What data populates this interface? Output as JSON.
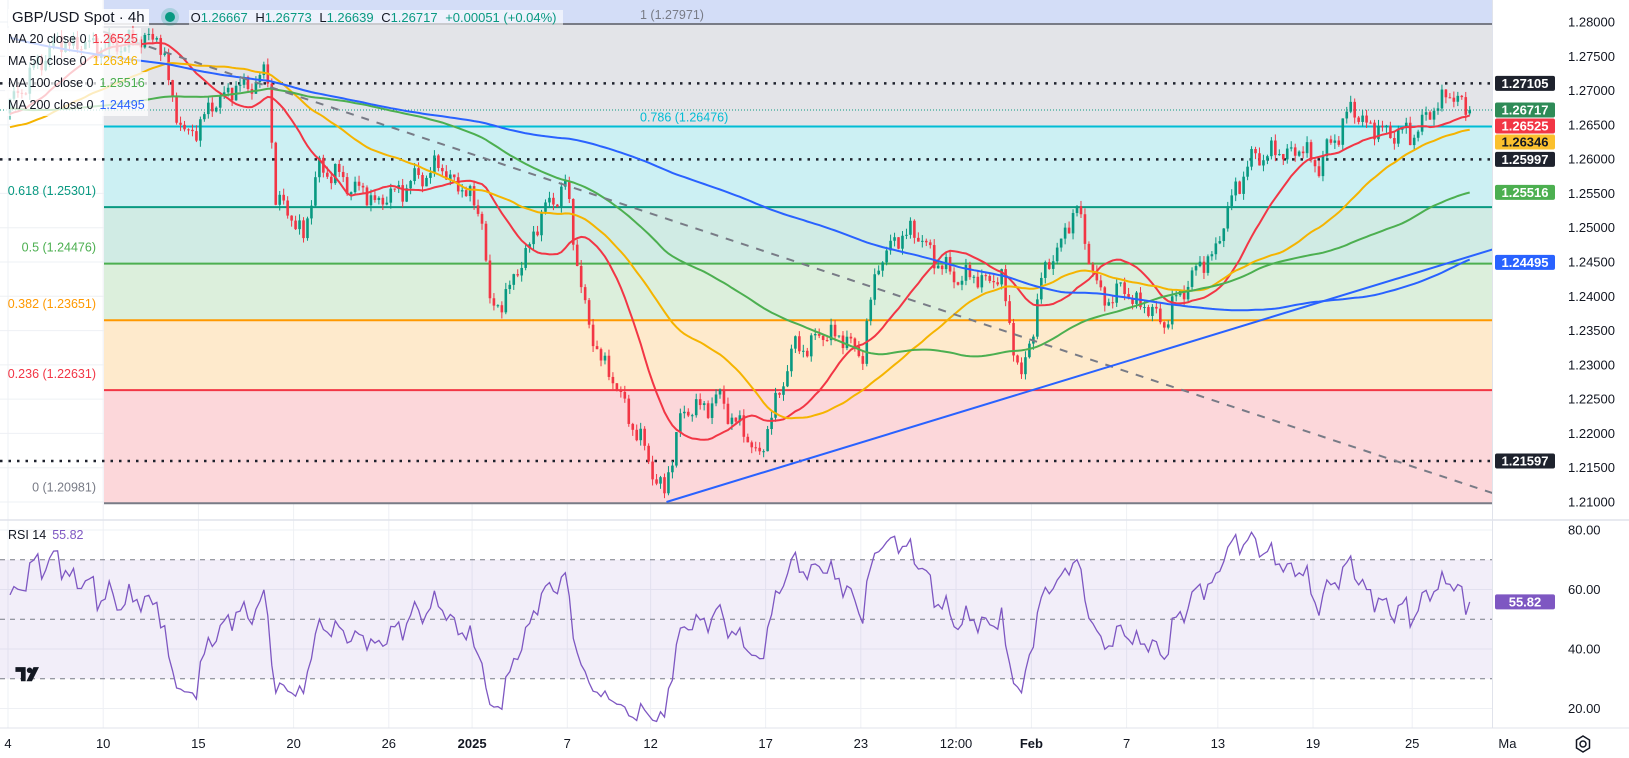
{
  "header": {
    "symbol": "GBP/USD Spot · 4h",
    "status_color": "#089981",
    "ohlc": {
      "o_label": "O",
      "o": "1.26667",
      "h_label": "H",
      "h": "1.26773",
      "l_label": "L",
      "l": "1.26639",
      "c_label": "C",
      "c": "1.26717",
      "change": "+0.00051 (+0.04%)"
    },
    "moving_averages": [
      {
        "name": "MA 20 close 0",
        "value": "1.26525",
        "color": "#f23645",
        "period": 20
      },
      {
        "name": "MA 50 close 0",
        "value": "1.26346",
        "color": "#f5b400",
        "period": 50
      },
      {
        "name": "MA 100 close 0",
        "value": "1.25516",
        "color": "#4caf50",
        "period": 100
      },
      {
        "name": "MA 200 close 0",
        "value": "1.24495",
        "color": "#2962ff",
        "period": 200
      }
    ],
    "rsi": {
      "name": "RSI 14",
      "value": "55.82",
      "color": "#7e57c2"
    }
  },
  "chart_data": {
    "type": "candlestick",
    "symbol": "GBP/USD",
    "timeframe": "4h",
    "last_candle": {
      "open": 1.26667,
      "high": 1.26773,
      "low": 1.26639,
      "close": 1.26717
    },
    "candle_colors": {
      "up": "#089981",
      "down": "#f23645"
    },
    "approx_close_path": [
      [
        "2024-12-04 00:00",
        1.268
      ],
      [
        "2024-12-05 20:00",
        1.277
      ],
      [
        "2024-12-10 04:00",
        1.2764
      ],
      [
        "2024-12-12 04:00",
        1.278
      ],
      [
        "2024-12-13 08:00",
        1.2628
      ],
      [
        "2024-12-17 00:00",
        1.2696
      ],
      [
        "2024-12-18 20:00",
        1.272
      ],
      [
        "2024-12-19 04:00",
        1.2545
      ],
      [
        "2024-12-20 08:00",
        1.249
      ],
      [
        "2024-12-23 00:00",
        1.259
      ],
      [
        "2024-12-25 12:00",
        1.2537
      ],
      [
        "2024-12-30 00:00",
        1.259
      ],
      [
        "2024-12-31 04:00",
        1.255
      ],
      [
        "2024-12-31 20:00",
        1.252
      ],
      [
        "2025-01-01 04:00",
        1.2378
      ],
      [
        "2025-01-02 00:00",
        1.241
      ],
      [
        "2025-01-03 12:00",
        1.253
      ],
      [
        "2025-01-06 08:00",
        1.256
      ],
      [
        "2025-01-07 08:00",
        1.2348
      ],
      [
        "2025-01-08 12:00",
        1.2265
      ],
      [
        "2025-01-10 12:00",
        1.2109
      ],
      [
        "2025-01-13 04:00",
        1.2227
      ],
      [
        "2025-01-14 20:00",
        1.225
      ],
      [
        "2025-01-16 12:00",
        1.2167
      ],
      [
        "2025-01-17 20:00",
        1.2318
      ],
      [
        "2025-01-21 12:00",
        1.2348
      ],
      [
        "2025-01-22 20:00",
        1.2318
      ],
      [
        "2025-01-23 12:00",
        1.2454
      ],
      [
        "2025-01-24 20:00",
        1.2499
      ],
      [
        "2025-01-28 12:00",
        1.243
      ],
      [
        "2025-01-30 16:00",
        1.2423
      ],
      [
        "2025-01-31 12:00",
        1.2272
      ],
      [
        "2025-02-03 08:00",
        1.2423
      ],
      [
        "2025-02-04 20:00",
        1.2529
      ],
      [
        "2025-02-05 20:00",
        1.2393
      ],
      [
        "2025-02-06 16:00",
        1.241
      ],
      [
        "2025-02-10 12:00",
        1.2363
      ],
      [
        "2025-02-11 12:00",
        1.2423
      ],
      [
        "2025-02-12 16:00",
        1.2469
      ],
      [
        "2025-02-13 12:00",
        1.256
      ],
      [
        "2025-02-14 08:00",
        1.2605
      ],
      [
        "2025-02-18 08:00",
        1.2613
      ],
      [
        "2025-02-19 00:00",
        1.259
      ],
      [
        "2025-02-20 08:00",
        1.2673
      ],
      [
        "2025-02-21 08:00",
        1.2643
      ],
      [
        "2025-02-24 20:00",
        1.2635
      ],
      [
        "2025-02-25 12:00",
        1.2658
      ],
      [
        "2025-02-26 08:00",
        1.2696
      ],
      [
        "2025-02-27 08:00",
        1.26717
      ]
    ],
    "price_axis": {
      "ylim": [
        1.21,
        1.28
      ],
      "ticks": [
        "1.28000",
        "1.27500",
        "1.27000",
        "1.26500",
        "1.26000",
        "1.25500",
        "1.25000",
        "1.24500",
        "1.24000",
        "1.23500",
        "1.23000",
        "1.22500",
        "1.22000",
        "1.21500",
        "1.21000"
      ]
    },
    "price_badges": [
      {
        "value": "1.27105",
        "bg": "#1e222d",
        "fg": "#ffffff"
      },
      {
        "value": "1.26717",
        "bg": "#2e8b57",
        "fg": "#ffffff"
      },
      {
        "value": "1.26525",
        "bg": "#f23645",
        "fg": "#ffffff"
      },
      {
        "value": "1.26346",
        "bg": "#fbc02d",
        "fg": "#131722"
      },
      {
        "value": "1.25997",
        "bg": "#1e222d",
        "fg": "#ffffff"
      },
      {
        "value": "1.25516",
        "bg": "#4caf50",
        "fg": "#ffffff"
      },
      {
        "value": "1.24495",
        "bg": "#2962ff",
        "fg": "#ffffff"
      },
      {
        "value": "1.21597",
        "bg": "#1e222d",
        "fg": "#ffffff"
      }
    ],
    "fibonacci": [
      {
        "label": "1 (1.27971)",
        "price": 1.27971,
        "line": "#787b86",
        "fill_above": "#d3ddf7"
      },
      {
        "label": "0.786 (1.26476)",
        "price": 1.26476,
        "line": "#00bcd4",
        "fill_above": "#e3e4e8"
      },
      {
        "label": "0.618 (1.25301)",
        "price": 1.25301,
        "line": "#089981",
        "fill_above": "#ccf0f3"
      },
      {
        "label": "0.5 (1.24476)",
        "price": 1.24476,
        "line": "#4caf50",
        "fill_above": "#d0ebe4"
      },
      {
        "label": "0.382 (1.23651)",
        "price": 1.23651,
        "line": "#ff9800",
        "fill_above": "#dcefdc"
      },
      {
        "label": "0.236 (1.22631)",
        "price": 1.22631,
        "line": "#f23645",
        "fill_above": "#feeacc"
      },
      {
        "label": "0 (1.20981)",
        "price": 1.20981,
        "line": "#787b86",
        "fill_above": "#fcd7da"
      }
    ],
    "horizontal_levels": [
      1.27105,
      1.25997,
      1.21597
    ],
    "current_price": 1.26717,
    "trendlines": [
      {
        "style": "dashed",
        "color": "#787b86",
        "from": [
          "2024-12-10 00:00",
          1.2786
        ],
        "to": [
          "2025-03-03 12:00",
          1.21
        ]
      },
      {
        "style": "solid",
        "color": "#2962ff",
        "from": [
          "2025-01-10 16:00",
          1.21
        ],
        "to": [
          "2025-03-03 16:00",
          1.2482
        ]
      }
    ],
    "rsi_axis": {
      "ylim": [
        10,
        85
      ],
      "ticks": [
        "80.00",
        "60.00",
        "40.00",
        "20.00"
      ],
      "bands": [
        70,
        50,
        30
      ]
    },
    "x_ticks": [
      {
        "label": "4",
        "date": "2024-12-04"
      },
      {
        "label": "10",
        "date": "2024-12-10"
      },
      {
        "label": "15",
        "date": "2024-12-15"
      },
      {
        "label": "20",
        "date": "2024-12-20"
      },
      {
        "label": "26",
        "date": "2024-12-26"
      },
      {
        "label": "2025",
        "date": "2024-12-31 12:00"
      },
      {
        "label": "7",
        "date": "2025-01-06 12:00"
      },
      {
        "label": "12",
        "date": "2025-01-10"
      },
      {
        "label": "17",
        "date": "2025-01-16 20:00"
      },
      {
        "label": "23",
        "date": "2025-01-22 20:00"
      },
      {
        "label": "12:00",
        "date": "2025-01-28 20:00"
      },
      {
        "label": "Feb",
        "date": "2025-02-03"
      },
      {
        "label": "7",
        "date": "2025-02-07"
      },
      {
        "label": "13",
        "date": "2025-02-12 20:00"
      },
      {
        "label": "19",
        "date": "2025-02-18 20:00"
      },
      {
        "label": "25",
        "date": "2025-02-25"
      },
      {
        "label": "Ma",
        "date": "2025-03-03"
      }
    ]
  },
  "icons": {
    "logo": "tradingview-logo",
    "settings": "gear-icon"
  }
}
